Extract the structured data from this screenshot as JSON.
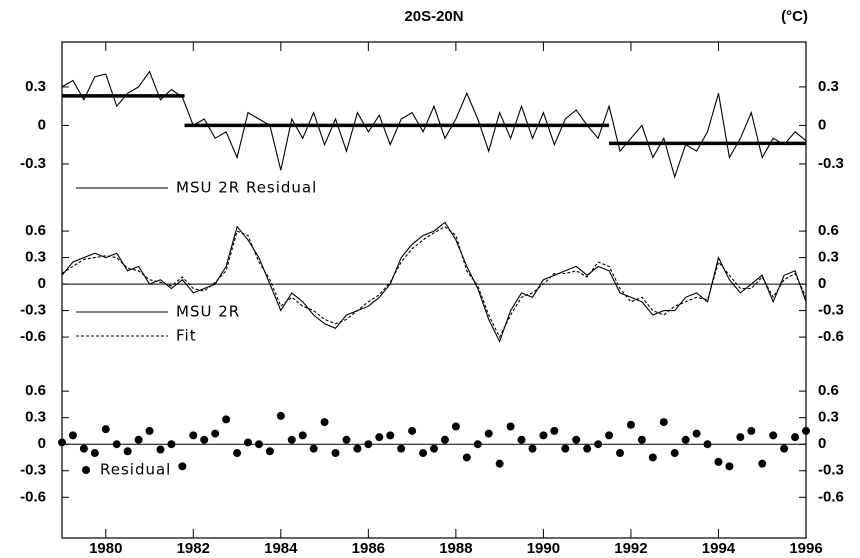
{
  "chart_data": [
    {
      "type": "line",
      "title": "20S-20N",
      "unit": "(°C)",
      "xlim": [
        1979,
        1996
      ],
      "ylim": [
        -0.62,
        0.65
      ],
      "yticks": [
        -0.3,
        0,
        0.3
      ],
      "x": [
        1979,
        1979.25,
        1979.5,
        1979.75,
        1980,
        1980.25,
        1980.5,
        1980.75,
        1981,
        1981.25,
        1981.5,
        1981.75,
        1982,
        1982.25,
        1982.5,
        1982.75,
        1983,
        1983.25,
        1983.5,
        1983.75,
        1984,
        1984.25,
        1984.5,
        1984.75,
        1985,
        1985.25,
        1985.5,
        1985.75,
        1986,
        1986.25,
        1986.5,
        1986.75,
        1987,
        1987.25,
        1987.5,
        1987.75,
        1988,
        1988.25,
        1988.5,
        1988.75,
        1989,
        1989.25,
        1989.5,
        1989.75,
        1990,
        1990.25,
        1990.5,
        1990.75,
        1991,
        1991.25,
        1991.5,
        1991.75,
        1992,
        1992.25,
        1992.5,
        1992.75,
        1993,
        1993.25,
        1993.5,
        1993.75,
        1994,
        1994.25,
        1994.5,
        1994.75,
        1995,
        1995.25,
        1995.5,
        1995.75,
        1996
      ],
      "series": [
        {
          "name": "MSU 2R Residual",
          "color": "#000000",
          "style": "solid",
          "values": [
            0.3,
            0.35,
            0.2,
            0.38,
            0.4,
            0.15,
            0.25,
            0.3,
            0.42,
            0.2,
            0.28,
            0.22,
            0.0,
            0.05,
            -0.1,
            -0.05,
            -0.25,
            0.1,
            0.05,
            0.0,
            -0.35,
            0.05,
            -0.1,
            0.1,
            -0.15,
            0.05,
            -0.2,
            0.1,
            -0.05,
            0.08,
            -0.15,
            0.05,
            0.1,
            -0.05,
            0.15,
            -0.1,
            0.05,
            0.25,
            0.05,
            -0.2,
            0.1,
            -0.1,
            0.15,
            -0.1,
            0.1,
            -0.15,
            0.05,
            0.12,
            0.0,
            -0.1,
            0.15,
            -0.2,
            -0.1,
            0.0,
            -0.25,
            -0.1,
            -0.4,
            -0.15,
            -0.2,
            -0.05,
            0.25,
            -0.25,
            -0.1,
            0.1,
            -0.25,
            -0.1,
            -0.15,
            -0.05,
            -0.12
          ]
        }
      ],
      "fit_segments": [
        {
          "x": [
            1979,
            1981.8
          ],
          "value": 0.23
        },
        {
          "x": [
            1981.8,
            1991.5
          ],
          "value": 0
        },
        {
          "x": [
            1991.5,
            1996
          ],
          "value": -0.14
        }
      ]
    },
    {
      "type": "line",
      "xlim": [
        1979,
        1996
      ],
      "ylim": [
        -0.95,
        0.85
      ],
      "yticks": [
        -0.6,
        -0.3,
        0,
        0.3,
        0.6
      ],
      "zero_line": true,
      "x": [
        1979,
        1979.25,
        1979.5,
        1979.75,
        1980,
        1980.25,
        1980.5,
        1980.75,
        1981,
        1981.25,
        1981.5,
        1981.75,
        1982,
        1982.25,
        1982.5,
        1982.75,
        1983,
        1983.25,
        1983.5,
        1983.75,
        1984,
        1984.25,
        1984.5,
        1984.75,
        1985,
        1985.25,
        1985.5,
        1985.75,
        1986,
        1986.25,
        1986.5,
        1986.75,
        1987,
        1987.25,
        1987.5,
        1987.75,
        1988,
        1988.25,
        1988.5,
        1988.75,
        1989,
        1989.25,
        1989.5,
        1989.75,
        1990,
        1990.25,
        1990.5,
        1990.75,
        1991,
        1991.25,
        1991.5,
        1991.75,
        1992,
        1992.25,
        1992.5,
        1992.75,
        1993,
        1993.25,
        1993.5,
        1993.75,
        1994,
        1994.25,
        1994.5,
        1994.75,
        1995,
        1995.25,
        1995.5,
        1995.75,
        1996
      ],
      "series": [
        {
          "name": "MSU 2R",
          "color": "#000000",
          "style": "solid",
          "values": [
            0.1,
            0.25,
            0.3,
            0.35,
            0.3,
            0.35,
            0.15,
            0.2,
            0.0,
            0.05,
            -0.05,
            0.05,
            -0.1,
            -0.05,
            0.0,
            0.2,
            0.65,
            0.5,
            0.3,
            0.0,
            -0.3,
            -0.1,
            -0.2,
            -0.35,
            -0.45,
            -0.5,
            -0.35,
            -0.3,
            -0.25,
            -0.15,
            0.0,
            0.3,
            0.45,
            0.55,
            0.6,
            0.7,
            0.5,
            0.2,
            -0.05,
            -0.4,
            -0.65,
            -0.3,
            -0.1,
            -0.15,
            0.05,
            0.1,
            0.15,
            0.2,
            0.1,
            0.2,
            0.15,
            -0.1,
            -0.15,
            -0.2,
            -0.35,
            -0.3,
            -0.3,
            -0.15,
            -0.1,
            -0.2,
            0.3,
            0.05,
            -0.1,
            0.0,
            0.1,
            -0.2,
            0.1,
            0.15,
            -0.2
          ]
        },
        {
          "name": "Fit",
          "color": "#000000",
          "style": "dashed",
          "values": [
            0.12,
            0.2,
            0.28,
            0.3,
            0.32,
            0.3,
            0.18,
            0.15,
            0.05,
            0.02,
            -0.02,
            0.08,
            -0.05,
            -0.08,
            0.02,
            0.15,
            0.6,
            0.55,
            0.25,
            0.05,
            -0.25,
            -0.15,
            -0.25,
            -0.3,
            -0.4,
            -0.45,
            -0.4,
            -0.3,
            -0.2,
            -0.12,
            0.02,
            0.25,
            0.4,
            0.5,
            0.58,
            0.65,
            0.55,
            0.15,
            -0.02,
            -0.35,
            -0.6,
            -0.35,
            -0.15,
            -0.1,
            0.0,
            0.12,
            0.12,
            0.15,
            0.08,
            0.25,
            0.2,
            -0.05,
            -0.2,
            -0.15,
            -0.3,
            -0.35,
            -0.25,
            -0.2,
            -0.15,
            -0.18,
            0.25,
            0.1,
            -0.05,
            -0.05,
            0.08,
            -0.15,
            0.05,
            0.12,
            -0.15
          ]
        }
      ]
    },
    {
      "type": "scatter",
      "xlim": [
        1979,
        1996
      ],
      "ylim": [
        -1.06,
        0.85
      ],
      "yticks": [
        -0.6,
        -0.3,
        0,
        0.3,
        0.6
      ],
      "zero_line": true,
      "xticks": [
        1980,
        1982,
        1984,
        1986,
        1988,
        1990,
        1992,
        1994,
        1996
      ],
      "x": [
        1979,
        1979.25,
        1979.5,
        1979.75,
        1980,
        1980.25,
        1980.5,
        1980.75,
        1981,
        1981.25,
        1981.5,
        1981.75,
        1982,
        1982.25,
        1982.5,
        1982.75,
        1983,
        1983.25,
        1983.5,
        1983.75,
        1984,
        1984.25,
        1984.5,
        1984.75,
        1985,
        1985.25,
        1985.5,
        1985.75,
        1986,
        1986.25,
        1986.5,
        1986.75,
        1987,
        1987.25,
        1987.5,
        1987.75,
        1988,
        1988.25,
        1988.5,
        1988.75,
        1989,
        1989.25,
        1989.5,
        1989.75,
        1990,
        1990.25,
        1990.5,
        1990.75,
        1991,
        1991.25,
        1991.5,
        1991.75,
        1992,
        1992.25,
        1992.5,
        1992.75,
        1993,
        1993.25,
        1993.5,
        1993.75,
        1994,
        1994.25,
        1994.5,
        1994.75,
        1995,
        1995.25,
        1995.5,
        1995.75,
        1996
      ],
      "series": [
        {
          "name": "Residual",
          "color": "#000000",
          "values": [
            0.02,
            0.1,
            -0.05,
            -0.1,
            0.17,
            0.0,
            -0.08,
            0.05,
            0.15,
            -0.06,
            0.0,
            -0.25,
            0.1,
            0.05,
            0.12,
            0.28,
            -0.1,
            0.02,
            0.0,
            -0.08,
            0.32,
            0.05,
            0.1,
            -0.05,
            0.25,
            -0.1,
            0.05,
            -0.05,
            0.0,
            0.08,
            0.1,
            -0.05,
            0.15,
            -0.1,
            -0.05,
            0.05,
            0.2,
            -0.15,
            0.0,
            0.12,
            -0.22,
            0.2,
            0.05,
            -0.05,
            0.1,
            0.15,
            -0.05,
            0.05,
            -0.05,
            0.0,
            0.1,
            -0.1,
            0.22,
            0.05,
            -0.15,
            0.25,
            -0.1,
            0.05,
            0.12,
            0.0,
            -0.2,
            -0.25,
            0.08,
            0.15,
            -0.22,
            0.1,
            -0.05,
            0.08,
            0.15
          ]
        }
      ]
    }
  ]
}
